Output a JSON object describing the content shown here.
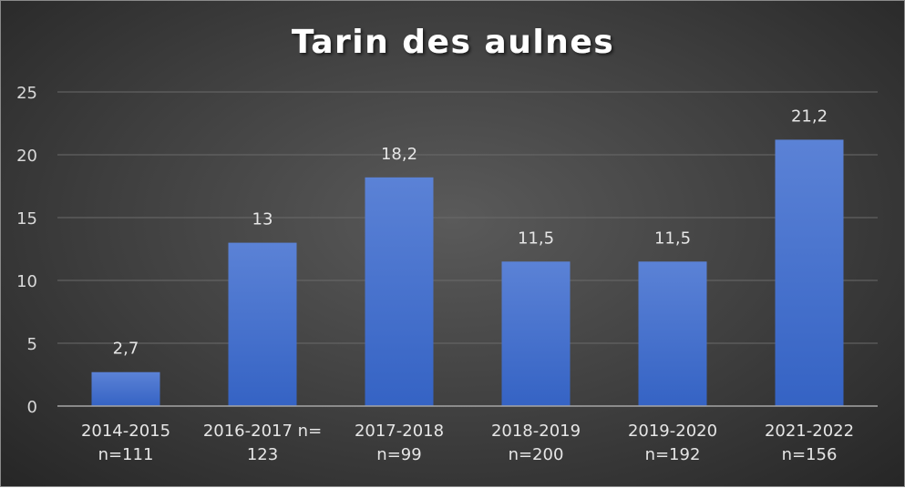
{
  "chart_data": {
    "type": "bar",
    "title": "Tarin des aulnes",
    "xlabel": "",
    "ylabel": "",
    "categories": [
      "2014-2015 n=111",
      "2016-2017 n= 123",
      "2017-2018 n=99",
      "2018-2019 n=200",
      "2019-2020 n=192",
      "2021-2022 n=156"
    ],
    "category_lines": [
      [
        "2014-2015",
        "n=111"
      ],
      [
        "2016-2017 n=",
        "123"
      ],
      [
        "2017-2018",
        "n=99"
      ],
      [
        "2018-2019",
        "n=200"
      ],
      [
        "2019-2020",
        "n=192"
      ],
      [
        "2021-2022",
        "n=156"
      ]
    ],
    "values": [
      2.7,
      13,
      18.2,
      11.5,
      11.5,
      21.2
    ],
    "data_labels": [
      "2,7",
      "13",
      "18,2",
      "11,5",
      "11,5",
      "21,2"
    ],
    "ylim": [
      0,
      25
    ],
    "yticks": [
      0,
      5,
      10,
      15,
      20,
      25
    ],
    "ytick_labels": [
      "0",
      "5",
      "10",
      "15",
      "20",
      "25"
    ],
    "grid": true,
    "legend": "none",
    "colors": {
      "bar_top": "#5b82d6",
      "bar_bottom": "#3563c4",
      "background_center": "#5a5a5a",
      "background_edge": "#262626",
      "gridline": "#6a6a6a",
      "axis_line": "#a6a6a6",
      "text": "#e6e6e6"
    }
  }
}
